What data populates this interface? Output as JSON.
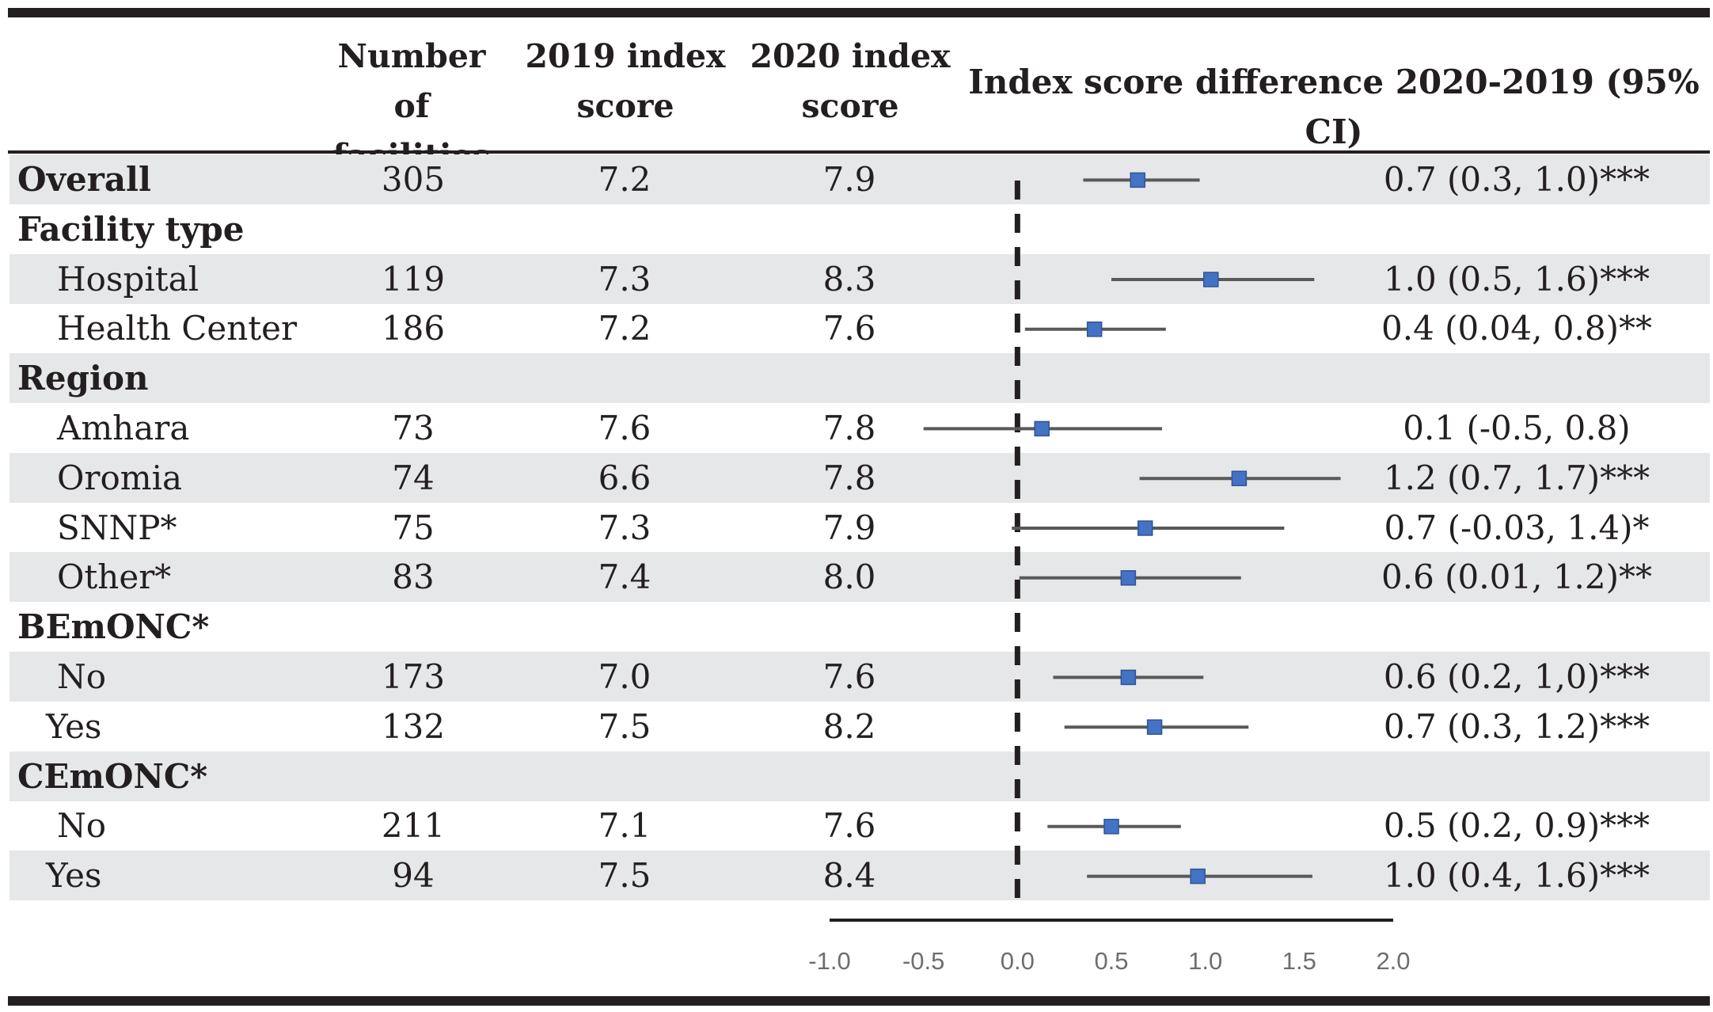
{
  "header": {
    "col_n": [
      "Number",
      "of facilities"
    ],
    "col_2019": [
      "2019 index",
      "score"
    ],
    "col_2020": [
      "2020 index",
      "score"
    ],
    "col_diff": "Index score difference 2020-2019 (95% CI)"
  },
  "rows": [
    {
      "label": "Overall",
      "kind": "bold-data",
      "n": "305",
      "s2019": "7.2",
      "s2020": "7.9",
      "result": "0.7 (0.3, 1.0)***",
      "shade": true
    },
    {
      "label": "Facility type",
      "kind": "group",
      "shade": false
    },
    {
      "label": "Hospital",
      "kind": "sub",
      "n": "119",
      "s2019": "7.3",
      "s2020": "8.3",
      "result": "1.0 (0.5, 1.6)***",
      "shade": true
    },
    {
      "label": "Health Center",
      "kind": "sub",
      "n": "186",
      "s2019": "7.2",
      "s2020": "7.6",
      "result": "0.4 (0.04, 0.8)**",
      "shade": false
    },
    {
      "label": "Region",
      "kind": "group",
      "shade": true
    },
    {
      "label": "Amhara",
      "kind": "sub",
      "n": "73",
      "s2019": "7.6",
      "s2020": "7.8",
      "result": "0.1 (-0.5, 0.8)",
      "shade": false
    },
    {
      "label": "Oromia",
      "kind": "sub",
      "n": "74",
      "s2019": "6.6",
      "s2020": "7.8",
      "result": "1.2 (0.7, 1.7)***",
      "shade": true
    },
    {
      "label": "SNNP*",
      "kind": "sub",
      "n": "75",
      "s2019": "7.3",
      "s2020": "7.9",
      "result": "0.7 (-0.03, 1.4)*",
      "shade": false
    },
    {
      "label": "Other*",
      "kind": "sub",
      "n": "83",
      "s2019": "7.4",
      "s2020": "8.0",
      "result": "0.6 (0.01, 1.2)**",
      "shade": true
    },
    {
      "label": "BEmONC*",
      "kind": "group",
      "shade": false
    },
    {
      "label": "No",
      "kind": "sub",
      "n": "173",
      "s2019": "7.0",
      "s2020": "7.6",
      "result": "0.6 (0.2, 1,0)***",
      "shade": true
    },
    {
      "label": "Yes",
      "kind": "sub2",
      "n": "132",
      "s2019": "7.5",
      "s2020": "8.2",
      "result": "0.7 (0.3, 1.2)***",
      "shade": false
    },
    {
      "label": "CEmONC*",
      "kind": "group",
      "shade": true
    },
    {
      "label": "No",
      "kind": "sub",
      "n": "211",
      "s2019": "7.1",
      "s2020": "7.6",
      "result": "0.5 (0.2, 0.9)***",
      "shade": false
    },
    {
      "label": "Yes",
      "kind": "sub2",
      "n": "94",
      "s2019": "7.5",
      "s2020": "8.4",
      "result": "1.0 (0.4, 1.6)***",
      "shade": true
    }
  ],
  "chart_data": {
    "type": "forest",
    "title": "Index score difference 2020-2019 (95% CI)",
    "xlim": [
      -1.0,
      2.0
    ],
    "ticks": [
      "-1.0",
      "-0.5",
      "0.0",
      "0.5",
      "1.0",
      "1.5",
      "2.0"
    ],
    "reference_line": 0.0,
    "point_color": "#4472c4",
    "points": [
      {
        "row": 0,
        "label": "Overall",
        "est": 0.64,
        "lo": 0.35,
        "hi": 0.97
      },
      {
        "row": 2,
        "label": "Hospital",
        "est": 1.03,
        "lo": 0.5,
        "hi": 1.58
      },
      {
        "row": 3,
        "label": "Health Center",
        "est": 0.41,
        "lo": 0.04,
        "hi": 0.79
      },
      {
        "row": 5,
        "label": "Amhara",
        "est": 0.13,
        "lo": -0.5,
        "hi": 0.77
      },
      {
        "row": 6,
        "label": "Oromia",
        "est": 1.18,
        "lo": 0.65,
        "hi": 1.72
      },
      {
        "row": 7,
        "label": "SNNP*",
        "est": 0.68,
        "lo": -0.03,
        "hi": 1.42
      },
      {
        "row": 8,
        "label": "Other*",
        "est": 0.59,
        "lo": 0.01,
        "hi": 1.19
      },
      {
        "row": 10,
        "label": "No",
        "est": 0.59,
        "lo": 0.19,
        "hi": 0.99
      },
      {
        "row": 11,
        "label": "Yes",
        "est": 0.73,
        "lo": 0.25,
        "hi": 1.23
      },
      {
        "row": 13,
        "label": "No",
        "est": 0.5,
        "lo": 0.16,
        "hi": 0.87
      },
      {
        "row": 14,
        "label": "Yes",
        "est": 0.96,
        "lo": 0.37,
        "hi": 1.57
      }
    ]
  }
}
